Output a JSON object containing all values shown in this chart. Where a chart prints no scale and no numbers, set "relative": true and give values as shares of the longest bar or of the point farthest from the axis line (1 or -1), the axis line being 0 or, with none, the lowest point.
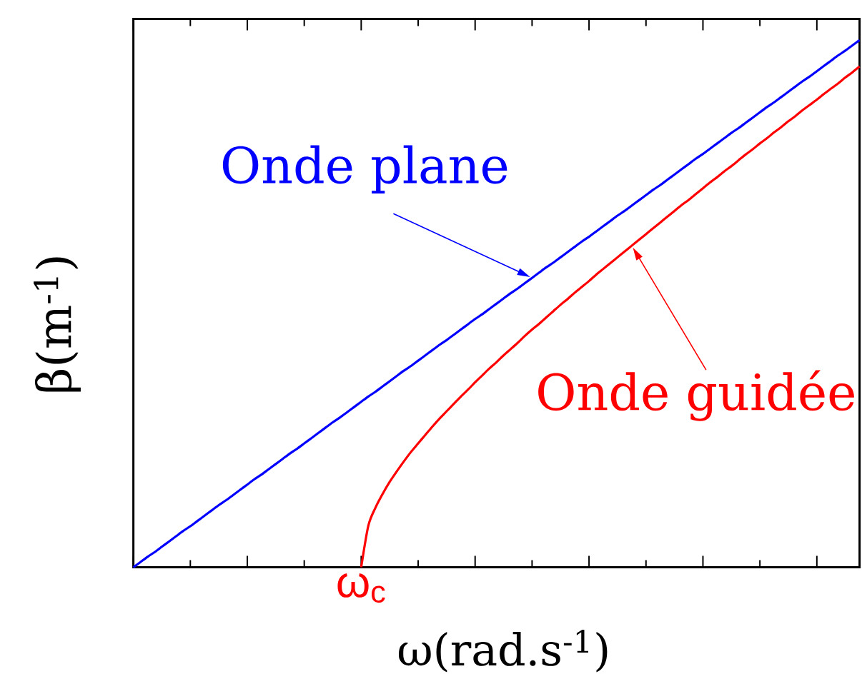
{
  "chart_data": {
    "type": "line",
    "relative": true,
    "xlabel": "ω(rad.s$^{-1}$)",
    "ylabel": "β(m$^{-1}$)",
    "marker": "none",
    "line_style": "solid",
    "annotations": [
      {
        "text": "ω$_{c}$",
        "y": 0
      }
    ],
    "categories": [
      null,
      null,
      null,
      null,
      null,
      null,
      null,
      null,
      null,
      null,
      null,
      null,
      null,
      null,
      null,
      null,
      null,
      null,
      null,
      null,
      null,
      null,
      null,
      null,
      null,
      null,
      null,
      null,
      null,
      null,
      null,
      null,
      null,
      null,
      null,
      null,
      null,
      null,
      null,
      null,
      null,
      null,
      null,
      null,
      null,
      null,
      null,
      null,
      null,
      null,
      null,
      null,
      null,
      null,
      null,
      null,
      null,
      null,
      null,
      null,
      null,
      null,
      null,
      null,
      null,
      null,
      null,
      null,
      null,
      null,
      null,
      null,
      null,
      null,
      null,
      null,
      null,
      null,
      null,
      null,
      null,
      null,
      null,
      null,
      null,
      null,
      null,
      null,
      null,
      null,
      null,
      null,
      null,
      null,
      null,
      null,
      null,
      null,
      null,
      null,
      null,
      null,
      null
    ],
    "series": [
      {
        "name": "Onde plane",
        "color": "#0000ff",
        "values": [
          0,
          0.01,
          0.02,
          0.029,
          0.039,
          0.049,
          0.059,
          0.069,
          0.078,
          0.088,
          0.098,
          0.108,
          0.118,
          0.127,
          0.137,
          0.147,
          0.157,
          0.167,
          0.176,
          0.186,
          0.196,
          0.206,
          0.216,
          0.225,
          0.235,
          0.245,
          0.255,
          0.265,
          0.275,
          0.284,
          0.294,
          0.304,
          0.314,
          0.324,
          0.333,
          0.343,
          0.353,
          0.363,
          0.373,
          0.382,
          0.392,
          0.402,
          0.412,
          0.422,
          0.431,
          0.441,
          0.451,
          0.461,
          0.471,
          0.48,
          0.49,
          0.5,
          0.51,
          0.52,
          0.529,
          0.539,
          0.549,
          0.559,
          0.569,
          0.578,
          0.588,
          0.598,
          0.608,
          0.618,
          0.627,
          0.637,
          0.647,
          0.657,
          0.667,
          0.676,
          0.686,
          0.696,
          0.706,
          0.716,
          0.725,
          0.735,
          0.745,
          0.755,
          0.765,
          0.775,
          0.784,
          0.794,
          0.804,
          0.814,
          0.824,
          0.833,
          0.843,
          0.853,
          0.863,
          0.873,
          0.882,
          0.892,
          0.902,
          0.912,
          0.922,
          0.931,
          0.941,
          0.951,
          0.961,
          0.971,
          0.98,
          0.99,
          1
        ]
      },
      {
        "name": "Onde guidée",
        "color": "#ff0000",
        "values": [
          null,
          null,
          null,
          null,
          null,
          null,
          null,
          null,
          null,
          null,
          null,
          null,
          null,
          null,
          null,
          null,
          null,
          null,
          null,
          null,
          null,
          null,
          null,
          null,
          null,
          null,
          null,
          null,
          null,
          null,
          null,
          null,
          0,
          0.079,
          0.113,
          0.139,
          0.162,
          0.182,
          0.201,
          0.219,
          0.235,
          0.251,
          0.267,
          0.282,
          0.296,
          0.31,
          0.324,
          0.337,
          0.351,
          0.364,
          0.377,
          0.389,
          0.402,
          0.414,
          0.426,
          0.439,
          0.451,
          0.462,
          0.474,
          0.486,
          0.498,
          0.509,
          0.521,
          0.532,
          0.543,
          0.555,
          0.566,
          0.577,
          0.588,
          0.599,
          0.61,
          0.621,
          0.632,
          0.643,
          0.654,
          0.665,
          0.676,
          0.687,
          0.697,
          0.708,
          0.719,
          0.73,
          0.74,
          0.751,
          0.761,
          0.772,
          0.783,
          0.793,
          0.804,
          0.814,
          0.825,
          0.835,
          0.846,
          0.856,
          0.867,
          0.877,
          0.887,
          0.898,
          0.908,
          0.918,
          0.929,
          0.939,
          0.95
        ]
      }
    ]
  }
}
